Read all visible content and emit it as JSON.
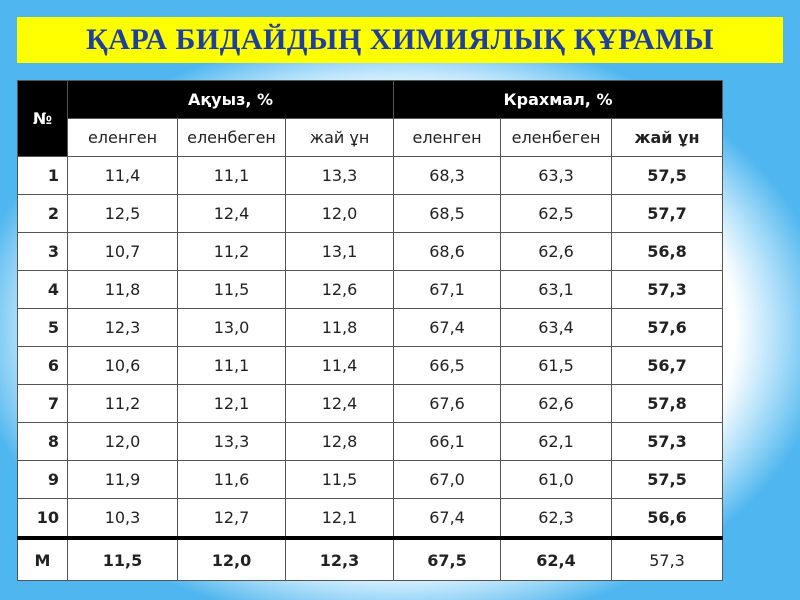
{
  "header": {
    "title": "ҚАРА БИДАЙДЫҢ ХИМИЯЛЫҚ ҚҰРАМЫ"
  },
  "table": {
    "corner": "№",
    "groups": [
      "Ақуыз, %",
      "Крахмал, %"
    ],
    "subheaders": [
      "еленген",
      "еленбеген",
      "жай ұн",
      "еленген",
      "еленбеген",
      "жай ұн"
    ],
    "rows": [
      [
        "1",
        "11,4",
        "11,1",
        "13,3",
        "68,3",
        "63,3",
        "57,5"
      ],
      [
        "2",
        "12,5",
        "12,4",
        "12,0",
        "68,5",
        "62,5",
        "57,7"
      ],
      [
        "3",
        "10,7",
        "11,2",
        "13,1",
        "68,6",
        "62,6",
        "56,8"
      ],
      [
        "4",
        "11,8",
        "11,5",
        "12,6",
        "67,1",
        "63,1",
        "57,3"
      ],
      [
        "5",
        "12,3",
        "13,0",
        "11,8",
        "67,4",
        "63,4",
        "57,6"
      ],
      [
        "6",
        "10,6",
        "11,1",
        "11,4",
        "66,5",
        "61,5",
        "56,7"
      ],
      [
        "7",
        "11,2",
        "12,1",
        "12,4",
        "67,6",
        "62,6",
        "57,8"
      ],
      [
        "8",
        "12,0",
        "13,3",
        "12,8",
        "66,1",
        "62,1",
        "57,3"
      ],
      [
        "9",
        "11,9",
        "11,6",
        "11,5",
        "67,0",
        "61,0",
        "57,5"
      ],
      [
        "10",
        "10,3",
        "12,7",
        "12,1",
        "67,4",
        "62,3",
        "56,6"
      ],
      [
        "М",
        "11,5",
        "12,0",
        "12,3",
        "67,5",
        "62,4",
        "57,3"
      ]
    ]
  }
}
